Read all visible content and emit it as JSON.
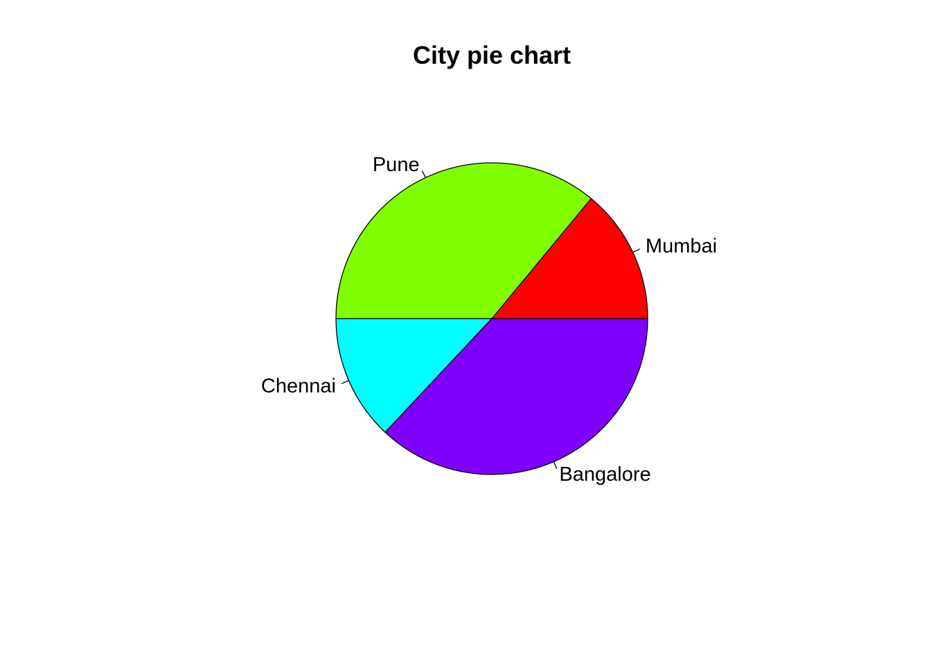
{
  "chart_data": {
    "type": "pie",
    "title": "City pie chart",
    "categories": [
      "Mumbai",
      "Pune",
      "Chennai",
      "Bangalore"
    ],
    "values": [
      14,
      36,
      13,
      37
    ],
    "colors": [
      "#FF0000",
      "#80FF00",
      "#00FFFF",
      "#8000FF"
    ],
    "start_angle_deg": 0,
    "direction": "counterclockwise",
    "legend": "none",
    "labels": "outside-with-leader-lines"
  }
}
